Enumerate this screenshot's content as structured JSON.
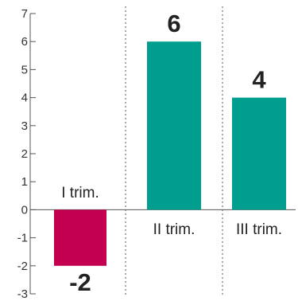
{
  "chart_data": {
    "type": "bar",
    "categories": [
      "I trim.",
      "II trim.",
      "III trim."
    ],
    "values": [
      -2,
      6,
      4
    ],
    "data_labels": [
      "-2",
      "6",
      "4"
    ],
    "title": "",
    "xlabel": "",
    "ylabel": "",
    "ylim": [
      -3,
      7
    ],
    "yticks": [
      7,
      6,
      5,
      4,
      3,
      2,
      1,
      0,
      -1,
      -2,
      -3
    ],
    "ytick_labels": [
      "7",
      "6",
      "5",
      "4",
      "3",
      "2",
      "1",
      "0",
      "-1",
      "-2",
      "-3"
    ],
    "grid": false,
    "category_separators": "dotted",
    "colors": {
      "negative": "#c2004f",
      "positive": "#009e8e",
      "axis": "#555555"
    }
  }
}
